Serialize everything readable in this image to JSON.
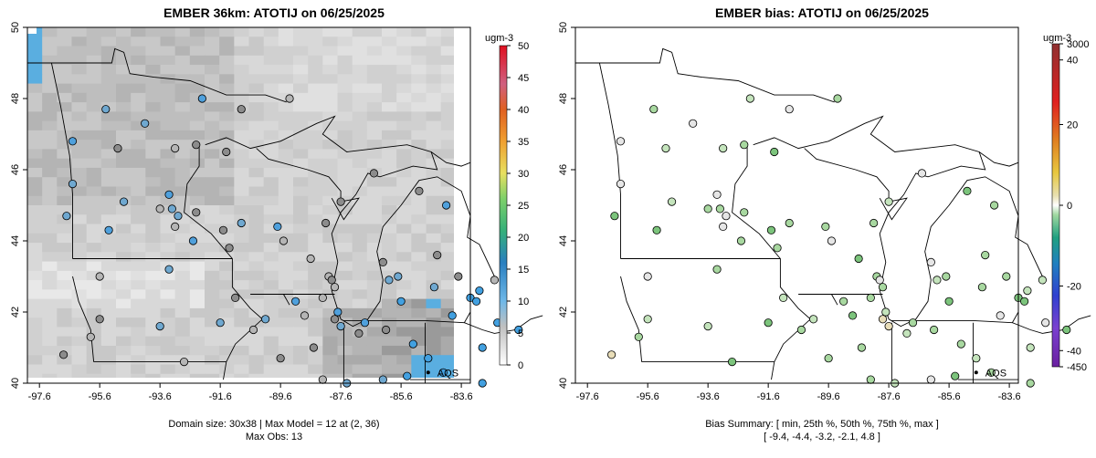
{
  "left_panel": {
    "title": "EMBER 36km: ATOTIJ on 06/25/2025",
    "legend_units": "ugm-3",
    "legend_ticks": [
      "0",
      "5",
      "10",
      "15",
      "20",
      "25",
      "30",
      "35",
      "40",
      "45",
      "50"
    ],
    "caption_line1": "Domain size: 30x38 | Max Model = 12 at (2, 36)",
    "caption_line2": "Max Obs: 13",
    "site_label": "AQS"
  },
  "right_panel": {
    "title": "EMBER bias: ATOTIJ on 06/25/2025",
    "legend_units": "ugm-3",
    "legend_ticks": [
      "3000",
      "40",
      "20",
      "0",
      "-20",
      "-40",
      "-450"
    ],
    "caption_line1": "Bias Summary: [ min, 25th %, 50th %, 75th %, max ]",
    "caption_line2": "[ -9.4,   -4.4,   -3.2,   -2.1,   4.8 ]",
    "site_label": "AQS"
  },
  "axes": {
    "x_ticks": [
      "-97.6",
      "-95.6",
      "-93.6",
      "-91.6",
      "-89.6",
      "-87.6",
      "-85.6",
      "-83.6"
    ],
    "y_ticks": [
      "40",
      "42",
      "44",
      "46",
      "48",
      "50"
    ],
    "xlim": [
      -98.0,
      -83.3
    ],
    "ylim": [
      40.0,
      50.0
    ]
  },
  "colors": {
    "map_line": "#000000",
    "model_light": "#e8e8e8",
    "model_dark": "#9a9a9a",
    "model_blue": "#5aaee0",
    "bias_green": "#a8d8a0",
    "bias_tan": "#e8ddb8"
  }
}
